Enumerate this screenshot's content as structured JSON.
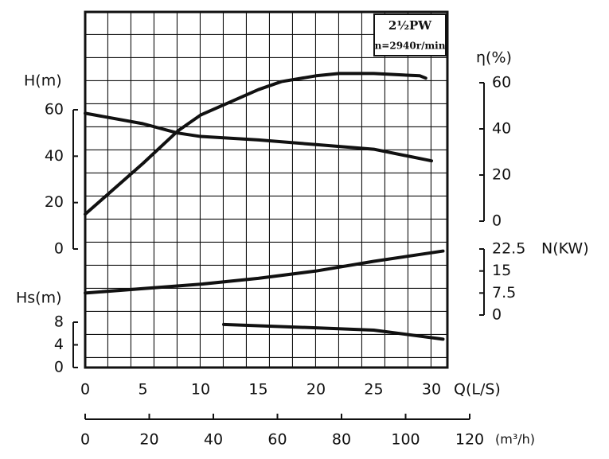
{
  "chart_data": {
    "type": "line",
    "annotations": [
      "2½PW",
      "n=2940r/min"
    ],
    "xlabel": "Q(L/S)",
    "xlim": [
      0,
      30
    ],
    "xticks": [
      0,
      5,
      10,
      15,
      20,
      25,
      30
    ],
    "x2label": "(m³/h)",
    "x2lim": [
      0,
      120
    ],
    "x2ticks": [
      0,
      20,
      40,
      60,
      80,
      100,
      120
    ],
    "ylabel": "H(m)",
    "ylim": [
      0,
      60
    ],
    "yticks": [
      0,
      20,
      40,
      60
    ],
    "y2label": "η(%)",
    "y2lim": [
      0,
      60
    ],
    "y2ticks": [
      0,
      20,
      40,
      60
    ],
    "y3label": "N(KW)",
    "y3lim": [
      0,
      22.5
    ],
    "y3ticks": [
      0,
      7.5,
      15,
      22.5
    ],
    "y4label": "Hs(m)",
    "y4lim": [
      0,
      8
    ],
    "y4ticks": [
      0,
      4,
      8
    ],
    "series": [
      {
        "axis": "y",
        "color": "#111",
        "x": [
          0,
          5,
          8,
          10,
          15,
          20,
          25,
          30
        ],
        "values": [
          58.5,
          54,
          50,
          48.5,
          47,
          45,
          43,
          38
        ]
      },
      {
        "axis": "y2",
        "color": "#111",
        "x": [
          0,
          5,
          8,
          10,
          15,
          17,
          20,
          22,
          25,
          29,
          29.5
        ],
        "values": [
          3,
          25,
          39,
          46,
          57,
          60.5,
          63,
          64,
          64,
          63,
          62
        ]
      },
      {
        "axis": "y3",
        "color": "#111",
        "x": [
          0,
          10,
          15,
          20,
          25,
          31
        ],
        "values": [
          7.5,
          10.5,
          12.5,
          15,
          18.3,
          21.8
        ]
      },
      {
        "axis": "y4",
        "color": "#111",
        "x": [
          12,
          20,
          25,
          31
        ],
        "values": [
          7.6,
          7,
          6.6,
          5
        ]
      }
    ]
  }
}
